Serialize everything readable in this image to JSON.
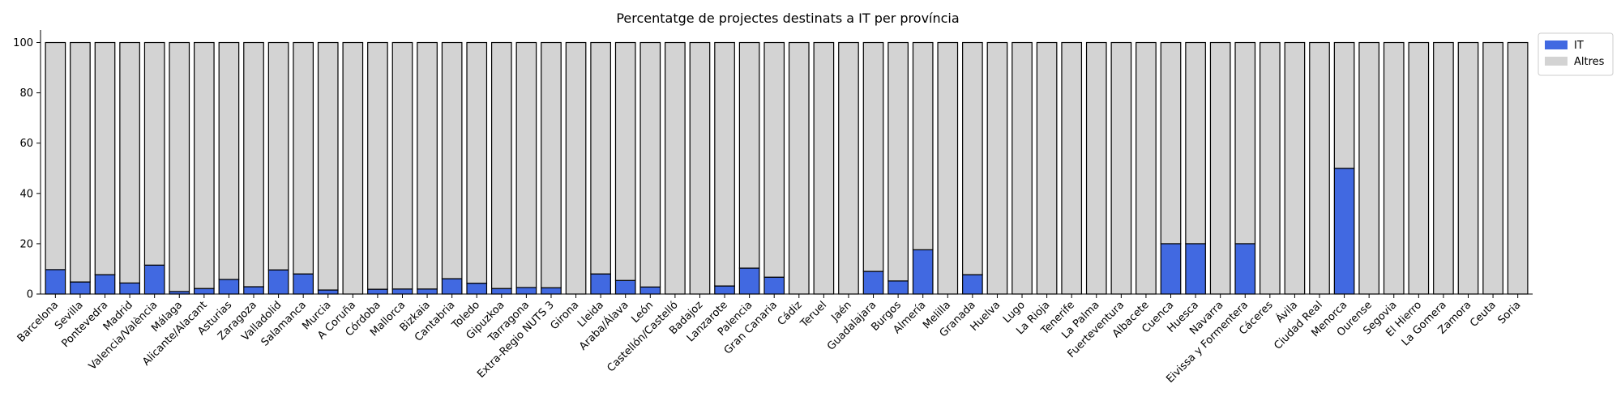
{
  "chart_data": {
    "type": "bar",
    "stacked": true,
    "title": "Percentatge de projectes destinats a IT per província",
    "xlabel": "",
    "ylabel": "",
    "ylim": [
      0,
      105
    ],
    "yticks": [
      0,
      20,
      40,
      60,
      80,
      100
    ],
    "grid": false,
    "legend_position": "top-right",
    "categories": [
      "Barcelona",
      "Sevilla",
      "Pontevedra",
      "Madrid",
      "Valencia/València",
      "Málaga",
      "Alicante/Alacant",
      "Asturias",
      "Zaragoza",
      "Valladolid",
      "Salamanca",
      "Murcia",
      "A Coruña",
      "Córdoba",
      "Mallorca",
      "Bizkaia",
      "Cantabria",
      "Toledo",
      "Gipuzkoa",
      "Tarragona",
      "Extra-Regio NUTS 3",
      "Girona",
      "Lleida",
      "Araba/Álava",
      "León",
      "Castellón/Castelló",
      "Badajoz",
      "Lanzarote",
      "Palencia",
      "Gran Canaria",
      "Cádiz",
      "Teruel",
      "Jaén",
      "Guadalajara",
      "Burgos",
      "Almería",
      "Melilla",
      "Granada",
      "Huelva",
      "Lugo",
      "La Rioja",
      "Tenerife",
      "La Palma",
      "Fuerteventura",
      "Albacete",
      "Cuenca",
      "Huesca",
      "Navarra",
      "Eivissa y Formentera",
      "Cáceres",
      "Ávila",
      "Ciudad Real",
      "Menorca",
      "Ourense",
      "Segovia",
      "El Hierro",
      "La Gomera",
      "Zamora",
      "Ceuta",
      "Soria"
    ],
    "series": [
      {
        "name": "IT",
        "color": "#4169e1",
        "values": [
          9.7,
          4.8,
          7.7,
          4.4,
          11.5,
          1.0,
          2.2,
          5.8,
          2.9,
          9.6,
          8.0,
          1.6,
          0,
          1.9,
          2.0,
          2.0,
          6.1,
          4.3,
          2.2,
          2.6,
          2.5,
          0,
          8.0,
          5.4,
          2.8,
          0,
          0,
          3.2,
          10.3,
          6.7,
          0,
          0,
          0,
          9.0,
          5.2,
          17.6,
          0,
          7.7,
          0,
          0,
          0,
          0,
          0,
          0,
          0,
          20,
          20,
          0,
          20,
          0,
          0,
          0,
          50,
          0,
          0,
          0,
          0,
          0,
          0,
          0
        ]
      },
      {
        "name": "Altres",
        "color": "#d3d3d3",
        "values": [
          90.3,
          95.2,
          92.3,
          95.6,
          88.5,
          99.0,
          97.8,
          94.2,
          97.1,
          90.4,
          92.0,
          98.4,
          100,
          98.1,
          98.0,
          98.0,
          93.9,
          95.7,
          97.8,
          97.4,
          97.5,
          100,
          92.0,
          94.6,
          97.2,
          100,
          100,
          96.8,
          89.7,
          93.3,
          100,
          100,
          100,
          91.0,
          94.8,
          82.4,
          100,
          92.3,
          100,
          100,
          100,
          100,
          100,
          100,
          100,
          80,
          80,
          100,
          80,
          100,
          100,
          100,
          50,
          100,
          100,
          100,
          100,
          100,
          100,
          100
        ]
      }
    ]
  }
}
